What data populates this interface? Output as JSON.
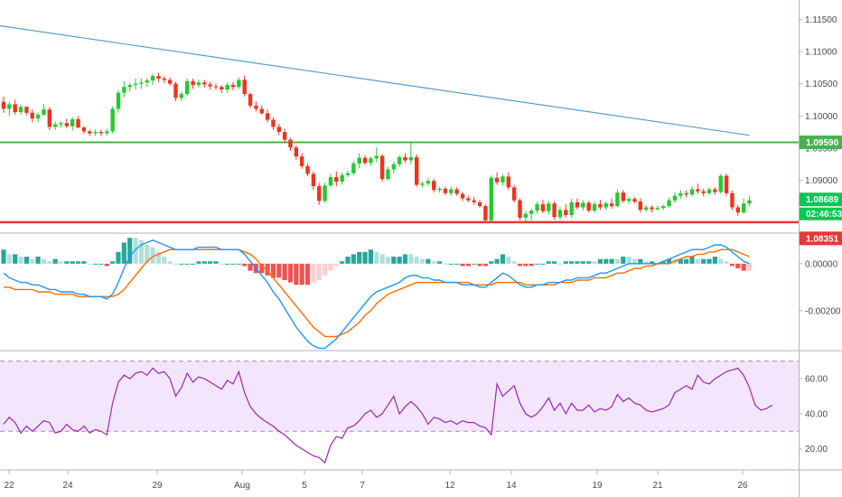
{
  "chart_data": {
    "type": "line",
    "x_ticks": [
      "22",
      "24",
      "29",
      "Aug",
      "5",
      "7",
      "12",
      "14",
      "19",
      "21",
      "26"
    ],
    "price_panel": {
      "y_ticks": [
        "1.11500",
        "1.11000",
        "1.10500",
        "1.10000",
        "1.09500",
        "1.09000",
        "1.08500"
      ],
      "ylim": [
        1.0818,
        1.118
      ],
      "grid": false,
      "candles": [
        [
          1.1022,
          1.103,
          1.1005,
          1.1011
        ],
        [
          1.1011,
          1.1022,
          1.1,
          1.1018
        ],
        [
          1.1018,
          1.1025,
          1.1002,
          1.1006
        ],
        [
          1.1006,
          1.1018,
          1.1002,
          1.1014
        ],
        [
          1.1014,
          1.1015,
          1.1001,
          1.1005
        ],
        [
          1.1005,
          1.101,
          1.099,
          1.0996
        ],
        [
          1.0996,
          1.1005,
          1.099,
          1.1002
        ],
        [
          1.1002,
          1.1018,
          1.1,
          1.101
        ],
        [
          1.101,
          1.1014,
          1.0978,
          1.0983
        ],
        [
          1.0983,
          1.0991,
          1.0978,
          1.0987
        ],
        [
          1.0987,
          1.0991,
          1.0982,
          1.0989
        ],
        [
          1.0989,
          1.0996,
          1.0981,
          1.0984
        ],
        [
          1.0984,
          1.0998,
          1.0977,
          1.0995
        ],
        [
          1.0995,
          1.1,
          1.0981,
          1.0982
        ],
        [
          1.0982,
          1.0984,
          1.0972,
          1.0976
        ],
        [
          1.0976,
          1.0979,
          1.0969,
          1.0973
        ],
        [
          1.0973,
          1.0979,
          1.0969,
          1.0975
        ],
        [
          1.0975,
          1.0979,
          1.0969,
          1.0973
        ],
        [
          1.0973,
          1.098,
          1.0969,
          1.0976
        ],
        [
          1.0976,
          1.1015,
          1.0973,
          1.1011
        ],
        [
          1.1011,
          1.104,
          1.1005,
          1.1036
        ],
        [
          1.1036,
          1.1054,
          1.1029,
          1.1045
        ],
        [
          1.1045,
          1.1051,
          1.1038,
          1.1048
        ],
        [
          1.1048,
          1.1058,
          1.1041,
          1.105
        ],
        [
          1.105,
          1.1058,
          1.1042,
          1.1052
        ],
        [
          1.1052,
          1.1059,
          1.1045,
          1.1055
        ],
        [
          1.1055,
          1.1066,
          1.1048,
          1.1062
        ],
        [
          1.1062,
          1.1067,
          1.1053,
          1.1058
        ],
        [
          1.1058,
          1.1062,
          1.1051,
          1.1056
        ],
        [
          1.1056,
          1.106,
          1.1047,
          1.105
        ],
        [
          1.105,
          1.1053,
          1.1023,
          1.1028
        ],
        [
          1.1028,
          1.1038,
          1.1023,
          1.1034
        ],
        [
          1.1034,
          1.1058,
          1.1031,
          1.1054
        ],
        [
          1.1054,
          1.1058,
          1.1042,
          1.1048
        ],
        [
          1.1048,
          1.1056,
          1.1044,
          1.1052
        ],
        [
          1.1052,
          1.1056,
          1.1044,
          1.1049
        ],
        [
          1.1049,
          1.1053,
          1.1041,
          1.1046
        ],
        [
          1.1046,
          1.105,
          1.104,
          1.1045
        ],
        [
          1.1045,
          1.1048,
          1.1036,
          1.1041
        ],
        [
          1.1041,
          1.1052,
          1.1036,
          1.1048
        ],
        [
          1.1048,
          1.1053,
          1.104,
          1.1045
        ],
        [
          1.1045,
          1.106,
          1.1042,
          1.1056
        ],
        [
          1.1056,
          1.1063,
          1.103,
          1.1034
        ],
        [
          1.1034,
          1.1036,
          1.1012,
          1.1016
        ],
        [
          1.1016,
          1.1023,
          1.1007,
          1.1011
        ],
        [
          1.1011,
          1.1016,
          1.1002,
          1.1004
        ],
        [
          1.1004,
          1.101,
          1.099,
          1.0994
        ],
        [
          1.0994,
          1.0998,
          1.0978,
          1.0983
        ],
        [
          1.0983,
          1.0988,
          1.097,
          1.0975
        ],
        [
          1.0975,
          1.098,
          1.0958,
          1.0963
        ],
        [
          1.0963,
          1.0966,
          1.0946,
          1.0951
        ],
        [
          1.0951,
          1.0954,
          1.0932,
          1.0937
        ],
        [
          1.0937,
          1.0942,
          1.0918,
          1.0922
        ],
        [
          1.0922,
          1.0926,
          1.0906,
          1.091
        ],
        [
          1.091,
          1.0914,
          1.0885,
          1.0891
        ],
        [
          1.0891,
          1.0896,
          1.0862,
          1.0868
        ],
        [
          1.0868,
          1.0896,
          1.0865,
          1.0892
        ],
        [
          1.0892,
          1.091,
          1.089,
          1.0905
        ],
        [
          1.0905,
          1.0914,
          1.0891,
          1.0898
        ],
        [
          1.0898,
          1.0912,
          1.0893,
          1.0908
        ],
        [
          1.0908,
          1.0915,
          1.0905,
          1.0911
        ],
        [
          1.0911,
          1.093,
          1.0908,
          1.0926
        ],
        [
          1.0926,
          1.0942,
          1.0919,
          1.0935
        ],
        [
          1.0935,
          1.0939,
          1.0924,
          1.0927
        ],
        [
          1.0927,
          1.0937,
          1.0922,
          1.0934
        ],
        [
          1.0934,
          1.0951,
          1.0928,
          1.0938
        ],
        [
          1.0938,
          1.0941,
          1.0898,
          1.0902
        ],
        [
          1.0902,
          1.0921,
          1.09,
          1.0917
        ],
        [
          1.0917,
          1.0929,
          1.0911,
          1.0925
        ],
        [
          1.0925,
          1.0939,
          1.0921,
          1.0936
        ],
        [
          1.0936,
          1.0942,
          1.0927,
          1.0931
        ],
        [
          1.0931,
          1.0958,
          1.0925,
          1.0936
        ],
        [
          1.0936,
          1.094,
          1.089,
          1.0893
        ],
        [
          1.0893,
          1.0898,
          1.0889,
          1.0895
        ],
        [
          1.0895,
          1.0903,
          1.0891,
          1.0899
        ],
        [
          1.0899,
          1.0902,
          1.0881,
          1.0885
        ],
        [
          1.0885,
          1.089,
          1.0881,
          1.0887
        ],
        [
          1.0887,
          1.089,
          1.0877,
          1.088
        ],
        [
          1.088,
          1.089,
          1.0876,
          1.0886
        ],
        [
          1.0886,
          1.0889,
          1.0876,
          1.0879
        ],
        [
          1.0879,
          1.0882,
          1.0868,
          1.0872
        ],
        [
          1.0872,
          1.0876,
          1.0866,
          1.0869
        ],
        [
          1.0869,
          1.0874,
          1.0862,
          1.0866
        ],
        [
          1.0866,
          1.087,
          1.0857,
          1.086
        ],
        [
          1.086,
          1.0863,
          1.0834,
          1.0838
        ],
        [
          1.0838,
          1.0908,
          1.0836,
          1.0904
        ],
        [
          1.0904,
          1.0912,
          1.0893,
          1.0897
        ],
        [
          1.0897,
          1.091,
          1.0892,
          1.0906
        ],
        [
          1.0906,
          1.0912,
          1.0885,
          1.0889
        ],
        [
          1.0889,
          1.0893,
          1.0866,
          1.0869
        ],
        [
          1.0869,
          1.0872,
          1.0838,
          1.0842
        ],
        [
          1.0842,
          1.0852,
          1.0836,
          1.0848
        ],
        [
          1.0848,
          1.0856,
          1.0838,
          1.0853
        ],
        [
          1.0853,
          1.0867,
          1.0848,
          1.0863
        ],
        [
          1.0863,
          1.087,
          1.0849,
          1.0852
        ],
        [
          1.0852,
          1.0868,
          1.0847,
          1.0864
        ],
        [
          1.0864,
          1.0867,
          1.0839,
          1.0843
        ],
        [
          1.0843,
          1.0859,
          1.0839,
          1.0854
        ],
        [
          1.0854,
          1.0863,
          1.0842,
          1.0846
        ],
        [
          1.0846,
          1.0871,
          1.0842,
          1.0866
        ],
        [
          1.0866,
          1.0872,
          1.0855,
          1.0858
        ],
        [
          1.0858,
          1.0869,
          1.0853,
          1.0865
        ],
        [
          1.0865,
          1.0868,
          1.085,
          1.0853
        ],
        [
          1.0853,
          1.0867,
          1.085,
          1.0863
        ],
        [
          1.0863,
          1.087,
          1.0854,
          1.0858
        ],
        [
          1.0858,
          1.0867,
          1.0854,
          1.0864
        ],
        [
          1.0864,
          1.0872,
          1.0856,
          1.086
        ],
        [
          1.086,
          1.0886,
          1.0858,
          1.0881
        ],
        [
          1.0881,
          1.0885,
          1.0865,
          1.0868
        ],
        [
          1.0868,
          1.0874,
          1.0863,
          1.0871
        ],
        [
          1.0871,
          1.0874,
          1.0864,
          1.0867
        ],
        [
          1.0867,
          1.0872,
          1.085,
          1.0854
        ],
        [
          1.0854,
          1.0862,
          1.0852,
          1.0858
        ],
        [
          1.0858,
          1.0861,
          1.085,
          1.0855
        ],
        [
          1.0855,
          1.0861,
          1.0853,
          1.0857
        ],
        [
          1.0857,
          1.0862,
          1.0854,
          1.086
        ],
        [
          1.086,
          1.0873,
          1.0857,
          1.0869
        ],
        [
          1.0869,
          1.0881,
          1.0865,
          1.0876
        ],
        [
          1.0876,
          1.0885,
          1.0871,
          1.088
        ],
        [
          1.088,
          1.0884,
          1.0874,
          1.0878
        ],
        [
          1.0878,
          1.089,
          1.0875,
          1.0886
        ],
        [
          1.0886,
          1.0895,
          1.0879,
          1.0883
        ],
        [
          1.0883,
          1.0887,
          1.0875,
          1.088
        ],
        [
          1.088,
          1.0889,
          1.0877,
          1.0886
        ],
        [
          1.0886,
          1.0889,
          1.0878,
          1.0882
        ],
        [
          1.0882,
          1.091,
          1.0879,
          1.0907
        ],
        [
          1.0907,
          1.091,
          1.0876,
          1.088
        ],
        [
          1.088,
          1.0884,
          1.0854,
          1.0858
        ],
        [
          1.0858,
          1.0862,
          1.0845,
          1.085
        ],
        [
          1.085,
          1.0872,
          1.0848,
          1.0864
        ],
        [
          1.0864,
          1.0876,
          1.086,
          1.0869
        ]
      ],
      "ma_line_start": 1.114,
      "ma_line_end": 1.097,
      "resistance": {
        "value": 1.0959,
        "label": "1.09590",
        "color": "#4caf50"
      },
      "support": {
        "value": 1.08351,
        "label": "1.08351",
        "color": "#e53935"
      },
      "current": {
        "value": 1.08689,
        "label": "1.08689",
        "color": "#00c853"
      },
      "countdown": {
        "label": "02:46:53",
        "color": "#00c853"
      }
    },
    "macd_panel": {
      "y_ticks": [
        "0.00000",
        "-0.00200"
      ],
      "ylim": [
        -0.0037,
        0.0013
      ],
      "macd": [
        -0.0004,
        -0.0006,
        -0.0007,
        -0.0008,
        -0.0008,
        -0.0009,
        -0.0009,
        -0.001,
        -0.0011,
        -0.0011,
        -0.0012,
        -0.0012,
        -0.0012,
        -0.0013,
        -0.0013,
        -0.0014,
        -0.0014,
        -0.0014,
        -0.0015,
        -0.0013,
        -0.0008,
        -0.0002,
        0.0003,
        0.0006,
        0.0008,
        0.0009,
        0.001,
        0.0009,
        0.0008,
        0.0007,
        0.0006,
        0.0006,
        0.0006,
        0.0006,
        0.0007,
        0.0007,
        0.0007,
        0.0007,
        0.0006,
        0.0006,
        0.0006,
        0.0006,
        0.0004,
        0.0001,
        -0.0002,
        -0.0005,
        -0.0008,
        -0.0012,
        -0.0015,
        -0.0019,
        -0.0023,
        -0.0027,
        -0.003,
        -0.0033,
        -0.0035,
        -0.0036,
        -0.0036,
        -0.0034,
        -0.0032,
        -0.0029,
        -0.0026,
        -0.0023,
        -0.002,
        -0.0017,
        -0.0014,
        -0.0012,
        -0.0011,
        -0.001,
        -0.0009,
        -0.0008,
        -0.0006,
        -0.0005,
        -0.0005,
        -0.0006,
        -0.0006,
        -0.0007,
        -0.0007,
        -0.0008,
        -0.0008,
        -0.0008,
        -0.0009,
        -0.0009,
        -0.0009,
        -0.001,
        -0.001,
        -0.0008,
        -0.0006,
        -0.0004,
        -0.0005,
        -0.0007,
        -0.0009,
        -0.001,
        -0.001,
        -0.0009,
        -0.0009,
        -0.0008,
        -0.0008,
        -0.0008,
        -0.0007,
        -0.0007,
        -0.0006,
        -0.0006,
        -0.0006,
        -0.0005,
        -0.0004,
        -0.0004,
        -0.0003,
        -0.0002,
        -0.0001,
        0.0,
        0.0,
        0.0,
        0.0,
        0.0,
        0.0,
        0.0001,
        0.0002,
        0.0003,
        0.0004,
        0.0005,
        0.0006,
        0.0006,
        0.0006,
        0.0007,
        0.0008,
        0.0008,
        0.0007,
        0.0005,
        0.0003,
        0.0001,
        0.0
      ],
      "signal": [
        -0.001,
        -0.001,
        -0.0011,
        -0.0011,
        -0.0011,
        -0.0011,
        -0.0012,
        -0.0012,
        -0.0012,
        -0.0013,
        -0.0013,
        -0.0013,
        -0.0013,
        -0.0014,
        -0.0014,
        -0.0014,
        -0.0014,
        -0.0014,
        -0.0014,
        -0.0014,
        -0.0013,
        -0.0011,
        -0.0008,
        -0.0005,
        -0.0002,
        0.0001,
        0.0003,
        0.0004,
        0.0005,
        0.0006,
        0.0006,
        0.0006,
        0.0006,
        0.0006,
        0.0006,
        0.0006,
        0.0006,
        0.0006,
        0.0006,
        0.0006,
        0.0006,
        0.0006,
        0.0005,
        0.0004,
        0.0002,
        -0.0001,
        -0.0003,
        -0.0006,
        -0.0009,
        -0.0012,
        -0.0015,
        -0.0018,
        -0.0021,
        -0.0024,
        -0.0027,
        -0.0029,
        -0.0031,
        -0.0031,
        -0.0031,
        -0.003,
        -0.0029,
        -0.0027,
        -0.0025,
        -0.0022,
        -0.002,
        -0.0017,
        -0.0015,
        -0.0013,
        -0.0012,
        -0.0011,
        -0.001,
        -0.0009,
        -0.0008,
        -0.0008,
        -0.0008,
        -0.0008,
        -0.0008,
        -0.0008,
        -0.0008,
        -0.0008,
        -0.0008,
        -0.0008,
        -0.0009,
        -0.0009,
        -0.0009,
        -0.0009,
        -0.0008,
        -0.0008,
        -0.0008,
        -0.0008,
        -0.0008,
        -0.0009,
        -0.0009,
        -0.0009,
        -0.0009,
        -0.0009,
        -0.0009,
        -0.0008,
        -0.0008,
        -0.0008,
        -0.0007,
        -0.0007,
        -0.0007,
        -0.0006,
        -0.0006,
        -0.0006,
        -0.0005,
        -0.0004,
        -0.0004,
        -0.0003,
        -0.0002,
        -0.0002,
        -0.0001,
        -0.0001,
        0.0,
        0.0,
        0.0,
        0.0001,
        0.0002,
        0.0003,
        0.0003,
        0.0004,
        0.0004,
        0.0005,
        0.0005,
        0.0006,
        0.0006,
        0.0006,
        0.0005,
        0.0004,
        0.0003
      ],
      "macd_color": "#2196f3",
      "signal_color": "#ff6d00"
    },
    "rsi_panel": {
      "y_ticks": [
        "60.00",
        "40.00",
        "20.00"
      ],
      "ylim": [
        8,
        76
      ],
      "upper_band": 70,
      "lower_band": 30,
      "band_color": "#f3e5fb",
      "line_color": "#9c27b0",
      "values": [
        34,
        38,
        35,
        29,
        33,
        30,
        33,
        36,
        35,
        29,
        30,
        34,
        31,
        30,
        33,
        29,
        31,
        30,
        28,
        46,
        58,
        62,
        60,
        63,
        64,
        62,
        66,
        63,
        64,
        60,
        50,
        55,
        63,
        58,
        61,
        60,
        58,
        56,
        54,
        59,
        57,
        64,
        52,
        44,
        40,
        37,
        35,
        33,
        30,
        28,
        25,
        22,
        20,
        18,
        16,
        15,
        12,
        22,
        27,
        26,
        32,
        33,
        36,
        40,
        42,
        38,
        40,
        45,
        50,
        40,
        44,
        47,
        44,
        40,
        34,
        38,
        37,
        35,
        36,
        34,
        36,
        35,
        35,
        33,
        32,
        28,
        57,
        50,
        53,
        56,
        46,
        40,
        38,
        40,
        44,
        49,
        42,
        46,
        40,
        46,
        42,
        42,
        45,
        41,
        43,
        42,
        44,
        51,
        47,
        49,
        46,
        45,
        42,
        41,
        42,
        43,
        45,
        52,
        54,
        56,
        54,
        62,
        58,
        57,
        60,
        62,
        64,
        65,
        66,
        62,
        55,
        45,
        42,
        43,
        45
      ]
    }
  }
}
